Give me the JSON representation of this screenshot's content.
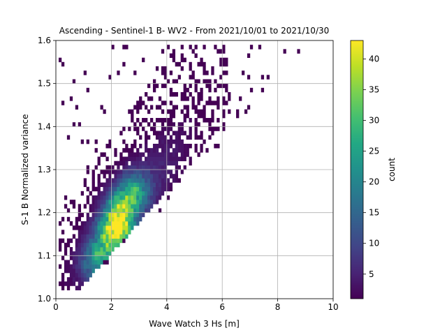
{
  "chart_data": {
    "type": "heatmap",
    "title": "Ascending - Sentinel-1 B- WV2 - From 2021/10/01 to 2021/10/30",
    "xlabel": "Wave Watch 3 Hs [m]",
    "ylabel": "S-1 B Normalized variance",
    "xlim": [
      0,
      10
    ],
    "ylim": [
      1.0,
      1.6
    ],
    "xticks": [
      "0",
      "2",
      "4",
      "6",
      "8",
      "10"
    ],
    "yticks": [
      "1.0",
      "1.1",
      "1.2",
      "1.3",
      "1.4",
      "1.5",
      "1.6"
    ],
    "grid": true,
    "colormap": "viridis",
    "colorbar": {
      "label": "count",
      "range": [
        1,
        43
      ],
      "ticks": [
        "5",
        "10",
        "15",
        "20",
        "25",
        "30",
        "35",
        "40"
      ]
    },
    "bins": {
      "x_width": 0.1,
      "y_width": 0.01,
      "description_x_range": [
        0.1,
        9.3
      ],
      "description_y_range": [
        1.02,
        1.59
      ]
    },
    "density_peaks": [
      {
        "x": 2.2,
        "y": 1.17,
        "count": 43
      },
      {
        "x": 2.0,
        "y": 1.15,
        "count": 38
      },
      {
        "x": 2.3,
        "y": 1.2,
        "count": 35
      },
      {
        "x": 1.9,
        "y": 1.13,
        "count": 32
      },
      {
        "x": 2.5,
        "y": 1.22,
        "count": 28
      },
      {
        "x": 1.6,
        "y": 1.1,
        "count": 25
      },
      {
        "x": 2.7,
        "y": 1.24,
        "count": 22
      },
      {
        "x": 1.4,
        "y": 1.08,
        "count": 18
      }
    ]
  }
}
